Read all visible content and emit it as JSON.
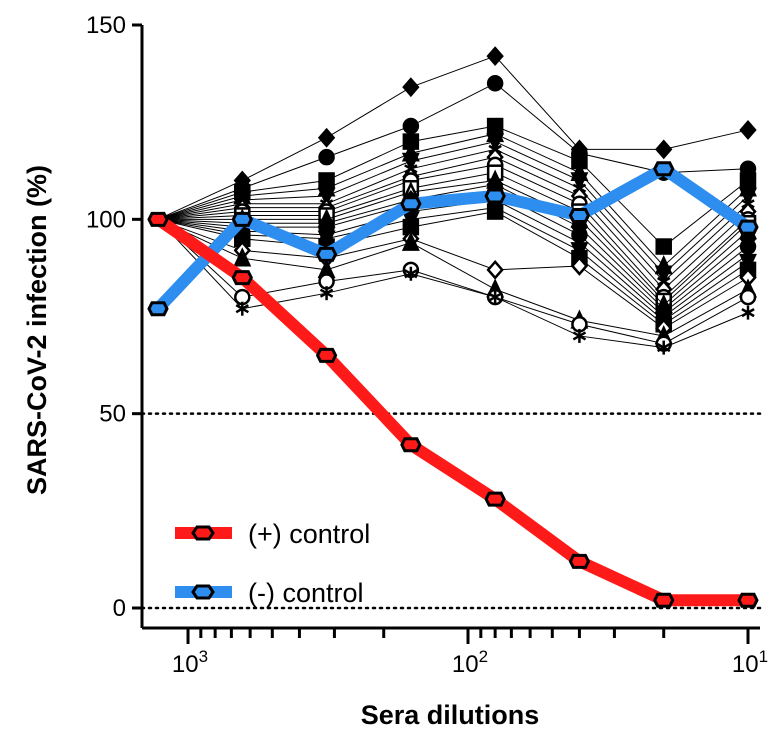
{
  "chart_data": {
    "type": "line",
    "xlabel": "Sera dilutions",
    "ylabel": "SARS-CoV-2 infection (%)",
    "x_scale": "log-reversed",
    "xlim": [
      1280,
      10
    ],
    "ylim": [
      0,
      150
    ],
    "y_ticks": [
      "0",
      "50",
      "100",
      "150"
    ],
    "x_ticks": [
      {
        "value": 1000,
        "base": "10",
        "exp": "3"
      },
      {
        "value": 100,
        "base": "10",
        "exp": "2"
      },
      {
        "value": 10,
        "base": "10",
        "exp": "1"
      }
    ],
    "x_dilutions": [
      1280,
      640,
      320,
      160,
      80,
      40,
      20,
      10
    ],
    "reference_lines": [
      50,
      0
    ],
    "legend": {
      "position": "bottom-left"
    },
    "series": [
      {
        "name": "(+) control",
        "color": "#ff1a1a",
        "values": [
          100,
          85,
          65,
          42,
          28,
          12,
          2,
          2
        ]
      },
      {
        "name": "(-) control",
        "color": "#2e8ef0",
        "values": [
          77,
          100,
          91,
          104,
          106,
          101,
          113,
          98
        ]
      }
    ],
    "sample_series": [
      [
        100,
        110,
        121,
        134,
        142,
        118,
        118,
        123
      ],
      [
        100,
        108,
        116,
        124,
        135,
        117,
        112,
        113
      ],
      [
        100,
        107,
        110,
        120,
        124,
        115,
        93,
        110
      ],
      [
        100,
        106,
        108,
        117,
        122,
        112,
        88,
        108
      ],
      [
        100,
        105,
        106,
        115,
        120,
        110,
        86,
        106
      ],
      [
        100,
        104,
        104,
        113,
        118,
        108,
        84,
        104
      ],
      [
        100,
        103,
        103,
        111,
        116,
        106,
        82,
        102
      ],
      [
        100,
        102,
        102,
        110,
        114,
        104,
        80,
        100
      ],
      [
        100,
        101,
        101,
        108,
        112,
        102,
        79,
        99
      ],
      [
        100,
        100,
        100,
        107,
        110,
        100,
        78,
        97
      ],
      [
        100,
        99,
        99,
        105,
        109,
        98,
        77,
        95
      ],
      [
        100,
        98,
        98,
        104,
        107,
        96,
        76,
        93
      ],
      [
        100,
        97,
        96,
        102,
        105,
        94,
        75,
        91
      ],
      [
        100,
        96,
        95,
        100,
        103,
        92,
        74,
        89
      ],
      [
        100,
        95,
        93,
        98,
        102,
        90,
        73,
        87
      ],
      [
        100,
        92,
        90,
        95,
        87,
        88,
        72,
        85
      ],
      [
        100,
        90,
        87,
        94,
        82,
        74,
        70,
        82
      ],
      [
        100,
        80,
        84,
        87,
        80,
        73,
        68,
        80
      ],
      [
        100,
        77,
        81,
        86,
        80,
        70,
        67,
        76
      ]
    ],
    "sample_markers": [
      "diamond",
      "circle",
      "square",
      "triangle",
      "down-triangle",
      "star",
      "diamond-open",
      "circle-open",
      "square-open",
      "triangle-open",
      "diamond",
      "circle",
      "star",
      "down-triangle",
      "square",
      "diamond-open",
      "triangle",
      "circle-open",
      "star"
    ]
  }
}
